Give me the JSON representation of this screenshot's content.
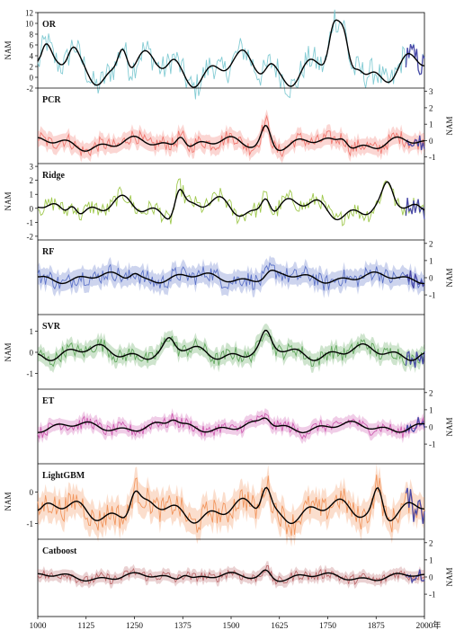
{
  "chart_data": {
    "type": "line",
    "x_axis": {
      "ticks": [
        1000,
        1125,
        1250,
        1375,
        1500,
        1625,
        1750,
        1875,
        2000
      ],
      "range": [
        1000,
        2000
      ],
      "unit_label": "年"
    },
    "ylabel": "NAM",
    "observed_period": [
      1950,
      2000
    ],
    "colors": {
      "observed": "#4a4aa8",
      "smooth": "#000000"
    },
    "panels": [
      {
        "name": "OR",
        "yaxis_side": "left",
        "yticks": [
          -2,
          0,
          2,
          4,
          6,
          8,
          10,
          12
        ],
        "ylim": [
          -2,
          12
        ],
        "color": "#6fc3cc",
        "show_band": false,
        "base": 1.6,
        "amp": 2.6,
        "noise": 2.6,
        "peaks": [
          {
            "year": 1020,
            "value": 4
          },
          {
            "year": 1090,
            "value": 4
          },
          {
            "year": 1220,
            "value": 7.5
          },
          {
            "year": 1350,
            "value": 2.5
          },
          {
            "year": 1600,
            "value": 3
          },
          {
            "year": 1765,
            "value": 8.5
          },
          {
            "year": 1790,
            "value": 7
          },
          {
            "year": 1830,
            "value": 4
          }
        ]
      },
      {
        "name": "PCR",
        "yaxis_side": "right",
        "yticks": [
          -1,
          0,
          1,
          2,
          3
        ],
        "ylim": [
          -1.4,
          3.2
        ],
        "color": "#ef6a60",
        "show_band": true,
        "base": -0.2,
        "amp": 0.35,
        "noise": 0.45,
        "peaks": [
          {
            "year": 1370,
            "value": 0.8
          },
          {
            "year": 1590,
            "value": 1.2
          },
          {
            "year": 1790,
            "value": 0.4
          }
        ]
      },
      {
        "name": "Ridge",
        "yaxis_side": "left",
        "yticks": [
          -2,
          -1,
          0,
          1,
          2,
          3
        ],
        "ylim": [
          -2.2,
          3.2
        ],
        "color": "#8fbf2f",
        "show_band": false,
        "base": 0.0,
        "amp": 0.7,
        "noise": 0.6,
        "peaks": [
          {
            "year": 1090,
            "value": 1.2
          },
          {
            "year": 1365,
            "value": 2.0
          },
          {
            "year": 1590,
            "value": 1.6
          },
          {
            "year": 1905,
            "value": 1.2
          }
        ]
      },
      {
        "name": "RF",
        "yaxis_side": "right",
        "yticks": [
          -1,
          0,
          1,
          2
        ],
        "ylim": [
          -2.2,
          2.2
        ],
        "color": "#4a63c2",
        "show_band": true,
        "base": 0.0,
        "amp": 0.25,
        "noise": 0.5,
        "peaks": [
          {
            "year": 1250,
            "value": 0.4
          },
          {
            "year": 1600,
            "value": 0.3
          }
        ]
      },
      {
        "name": "SVR",
        "yaxis_side": "left",
        "yticks": [
          -1,
          0,
          1
        ],
        "ylim": [
          -1.8,
          1.8
        ],
        "color": "#4f9e4a",
        "show_band": true,
        "base": 0.0,
        "amp": 0.3,
        "noise": 0.35,
        "peaks": [
          {
            "year": 1340,
            "value": 0.5
          },
          {
            "year": 1590,
            "value": 0.8
          }
        ]
      },
      {
        "name": "ET",
        "yaxis_side": "right",
        "yticks": [
          -1,
          0,
          1,
          2
        ],
        "ylim": [
          -2.2,
          2.2
        ],
        "color": "#c94aa8",
        "show_band": true,
        "base": 0.0,
        "amp": 0.25,
        "noise": 0.35,
        "peaks": [
          {
            "year": 1350,
            "value": 0.4
          },
          {
            "year": 1590,
            "value": 0.5
          }
        ]
      },
      {
        "name": "LightGBM",
        "yaxis_side": "left",
        "yticks": [
          -1,
          0
        ],
        "ylim": [
          -1.5,
          0.9
        ],
        "color": "#f08a4a",
        "show_band": true,
        "base": -0.6,
        "amp": 0.3,
        "noise": 0.4,
        "peaks": [
          {
            "year": 1250,
            "value": 0.1
          },
          {
            "year": 1590,
            "value": 0.3
          },
          {
            "year": 1880,
            "value": 0.4
          }
        ]
      },
      {
        "name": "Catboost",
        "yaxis_side": "right",
        "yticks": [
          -1,
          0,
          1,
          2
        ],
        "ylim": [
          -2.2,
          2.2
        ],
        "color": "#b5585c",
        "show_band": true,
        "base": 0.0,
        "amp": 0.2,
        "noise": 0.3,
        "peaks": [
          {
            "year": 1380,
            "value": 0.4
          },
          {
            "year": 1590,
            "value": 0.5
          }
        ]
      }
    ]
  }
}
